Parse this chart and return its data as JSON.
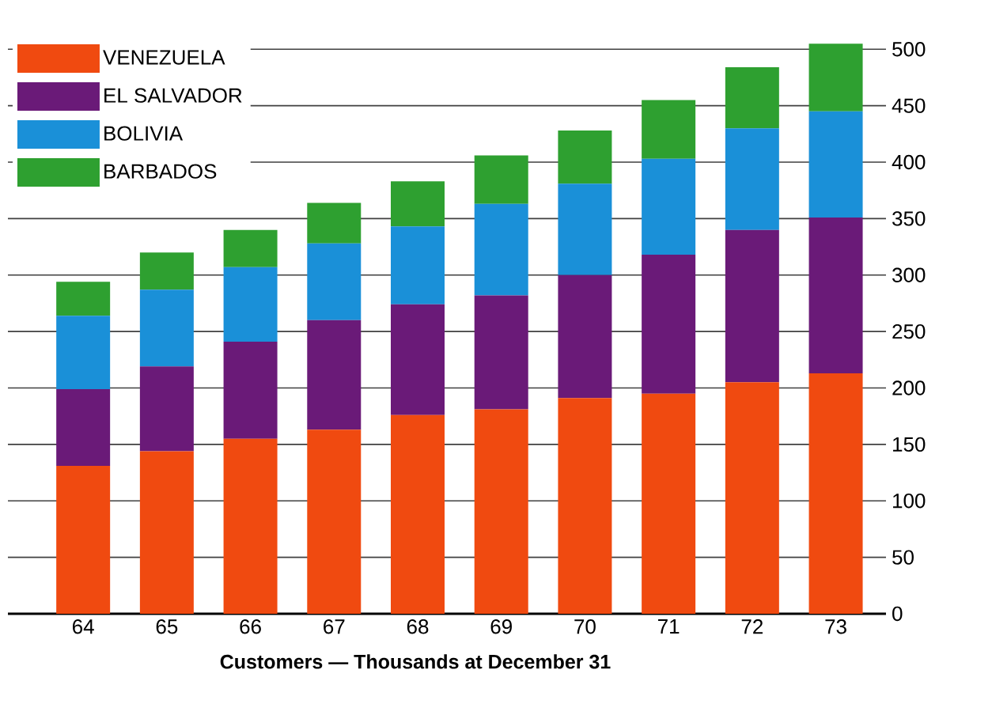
{
  "chart_data": {
    "type": "bar",
    "stacked": true,
    "xlabel": "Customers — Thousands at December 31",
    "categories": [
      "64",
      "65",
      "66",
      "67",
      "68",
      "69",
      "70",
      "71",
      "72",
      "73"
    ],
    "series": [
      {
        "name": "VENEZUELA",
        "color": "#f04a10",
        "values": [
          131,
          144,
          155,
          163,
          176,
          181,
          191,
          195,
          205,
          213
        ]
      },
      {
        "name": "EL SALVADOR",
        "color": "#6a1a78",
        "values": [
          68,
          75,
          86,
          97,
          98,
          101,
          109,
          123,
          135,
          138
        ]
      },
      {
        "name": "BOLIVIA",
        "color": "#1a90d8",
        "values": [
          65,
          68,
          66,
          68,
          69,
          81,
          81,
          85,
          90,
          94
        ]
      },
      {
        "name": "BARBADOS",
        "color": "#2ea030",
        "values": [
          30,
          33,
          33,
          36,
          40,
          43,
          47,
          52,
          54,
          60
        ]
      }
    ],
    "ylim": [
      0,
      510
    ],
    "yticks": [
      0,
      50,
      100,
      150,
      200,
      250,
      300,
      350,
      400,
      450,
      500
    ],
    "grid": "y",
    "legend": "top left"
  }
}
